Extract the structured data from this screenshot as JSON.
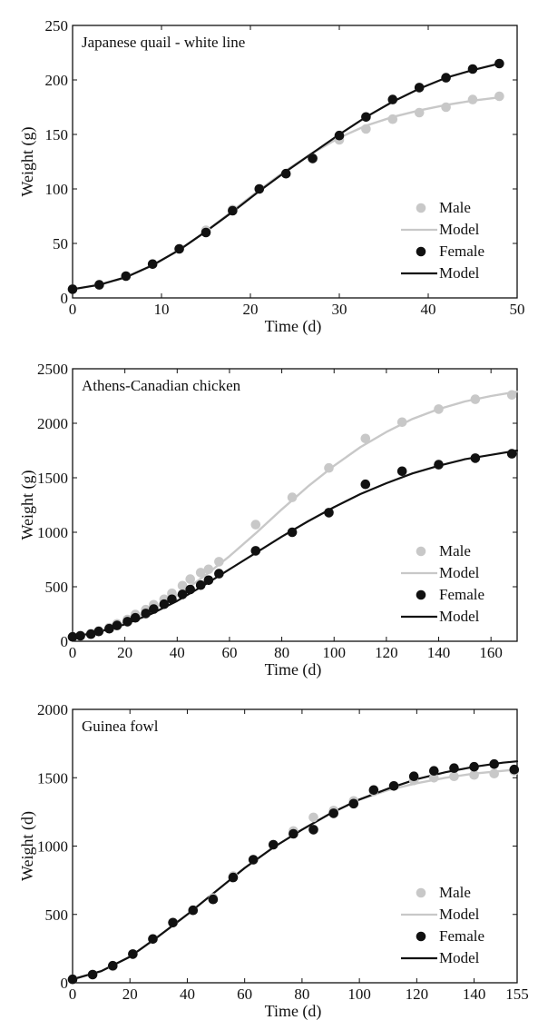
{
  "chart_data": [
    {
      "type": "scatter",
      "title": "Japanese quail - white line",
      "xlabel": "Time (d)",
      "ylabel": "Weight (g)",
      "xlim": [
        0,
        50
      ],
      "ylim": [
        0,
        250
      ],
      "xticks": [
        0,
        10,
        20,
        30,
        40,
        50
      ],
      "yticks": [
        0,
        50,
        100,
        150,
        200,
        250
      ],
      "legend_position": "bottom-right",
      "legend": [
        "Male",
        "Model",
        "Female",
        "Model"
      ],
      "colors": {
        "male": "#c8c8c8",
        "female": "#111111"
      },
      "series": [
        {
          "name": "Male",
          "kind": "points",
          "color": "#c8c8c8",
          "x": [
            0,
            3,
            6,
            9,
            12,
            15,
            18,
            21,
            24,
            27,
            30,
            33,
            36,
            39,
            42,
            45,
            48
          ],
          "y": [
            8,
            12,
            20,
            31,
            45,
            62,
            81,
            100,
            114,
            128,
            145,
            155,
            164,
            170,
            175,
            182,
            185
          ]
        },
        {
          "name": "Model",
          "kind": "line",
          "color": "#c8c8c8",
          "x": [
            0,
            3,
            6,
            9,
            12,
            15,
            18,
            21,
            24,
            27,
            30,
            33,
            36,
            39,
            42,
            45,
            48
          ],
          "y": [
            8,
            12,
            19,
            30,
            44,
            61,
            80,
            99,
            117,
            133,
            147,
            158,
            166,
            172,
            177,
            181,
            184
          ]
        },
        {
          "name": "Female",
          "kind": "points",
          "color": "#111111",
          "x": [
            0,
            3,
            6,
            9,
            12,
            15,
            18,
            21,
            24,
            27,
            30,
            33,
            36,
            39,
            42,
            45,
            48
          ],
          "y": [
            8,
            12,
            20,
            31,
            45,
            60,
            80,
            100,
            114,
            128,
            149,
            166,
            182,
            193,
            202,
            210,
            215
          ]
        },
        {
          "name": "Model",
          "kind": "line",
          "color": "#111111",
          "x": [
            0,
            3,
            6,
            9,
            12,
            15,
            18,
            21,
            24,
            27,
            30,
            33,
            36,
            39,
            42,
            45,
            48
          ],
          "y": [
            8,
            12,
            19,
            30,
            44,
            61,
            79,
            98,
            116,
            133,
            150,
            166,
            180,
            192,
            202,
            209,
            215
          ]
        }
      ]
    },
    {
      "type": "scatter",
      "title": "Athens-Canadian chicken",
      "xlabel": "Time (d)",
      "ylabel": "Weight (g)",
      "xlim": [
        0,
        170
      ],
      "ylim": [
        0,
        2500
      ],
      "xticks": [
        0,
        20,
        40,
        60,
        80,
        100,
        120,
        140,
        160
      ],
      "yticks": [
        0,
        500,
        1000,
        1500,
        2000,
        2500
      ],
      "legend_position": "bottom-right",
      "legend": [
        "Male",
        "Model",
        "Female",
        "Model"
      ],
      "colors": {
        "male": "#c8c8c8",
        "female": "#111111"
      },
      "series": [
        {
          "name": "Male",
          "kind": "points",
          "color": "#c8c8c8",
          "x": [
            0,
            3,
            7,
            10,
            14,
            17,
            21,
            24,
            28,
            31,
            35,
            38,
            42,
            45,
            49,
            52,
            56,
            70,
            84,
            98,
            112,
            126,
            140,
            154,
            168
          ],
          "y": [
            40,
            52,
            70,
            95,
            125,
            160,
            200,
            245,
            290,
            335,
            385,
            440,
            510,
            570,
            630,
            660,
            730,
            1070,
            1320,
            1590,
            1860,
            2010,
            2130,
            2220,
            2260
          ]
        },
        {
          "name": "Model",
          "kind": "line",
          "color": "#c8c8c8",
          "x": [
            0,
            10,
            20,
            30,
            40,
            50,
            60,
            70,
            80,
            90,
            100,
            110,
            120,
            130,
            140,
            150,
            160,
            170
          ],
          "y": [
            40,
            90,
            170,
            280,
            420,
            590,
            780,
            990,
            1210,
            1420,
            1610,
            1780,
            1920,
            2040,
            2130,
            2200,
            2250,
            2290
          ]
        },
        {
          "name": "Female",
          "kind": "points",
          "color": "#111111",
          "x": [
            0,
            3,
            7,
            10,
            14,
            17,
            21,
            24,
            28,
            31,
            35,
            38,
            42,
            45,
            49,
            52,
            56,
            70,
            84,
            98,
            112,
            126,
            140,
            154,
            168
          ],
          "y": [
            40,
            50,
            65,
            90,
            115,
            145,
            180,
            215,
            255,
            295,
            340,
            385,
            430,
            475,
            515,
            560,
            620,
            830,
            1000,
            1180,
            1440,
            1560,
            1620,
            1680,
            1720
          ]
        },
        {
          "name": "Model",
          "kind": "line",
          "color": "#111111",
          "x": [
            0,
            10,
            20,
            30,
            40,
            50,
            60,
            70,
            80,
            90,
            100,
            110,
            120,
            130,
            140,
            150,
            160,
            170
          ],
          "y": [
            40,
            85,
            155,
            250,
            370,
            510,
            660,
            810,
            960,
            1100,
            1230,
            1350,
            1450,
            1540,
            1610,
            1670,
            1710,
            1750
          ]
        }
      ]
    },
    {
      "type": "scatter",
      "title": "Guinea fowl",
      "xlabel": "Time (d)",
      "ylabel": "Weight (d)",
      "xlim": [
        0,
        155
      ],
      "ylim": [
        0,
        2000
      ],
      "xticks": [
        0,
        20,
        40,
        60,
        80,
        100,
        120,
        140,
        155
      ],
      "yticks": [
        0,
        500,
        1000,
        1500,
        2000
      ],
      "legend_position": "bottom-right",
      "legend": [
        "Male",
        "Model",
        "Female",
        "Model"
      ],
      "colors": {
        "male": "#c8c8c8",
        "female": "#111111"
      },
      "series": [
        {
          "name": "Male",
          "kind": "points",
          "color": "#c8c8c8",
          "x": [
            0,
            7,
            14,
            21,
            28,
            35,
            42,
            49,
            56,
            63,
            70,
            77,
            84,
            91,
            98,
            105,
            112,
            119,
            126,
            133,
            140,
            147,
            154
          ],
          "y": [
            25,
            60,
            120,
            210,
            320,
            440,
            530,
            620,
            780,
            900,
            1010,
            1110,
            1210,
            1260,
            1330,
            1400,
            1440,
            1480,
            1500,
            1510,
            1520,
            1530,
            1550
          ]
        },
        {
          "name": "Model",
          "kind": "line",
          "color": "#c8c8c8",
          "x": [
            0,
            10,
            20,
            30,
            40,
            50,
            60,
            70,
            80,
            90,
            100,
            110,
            120,
            130,
            140,
            150,
            155
          ],
          "y": [
            25,
            85,
            190,
            340,
            500,
            670,
            840,
            990,
            1120,
            1240,
            1340,
            1410,
            1460,
            1500,
            1530,
            1550,
            1560
          ]
        },
        {
          "name": "Female",
          "kind": "points",
          "color": "#111111",
          "x": [
            0,
            7,
            14,
            21,
            28,
            35,
            42,
            49,
            56,
            63,
            70,
            77,
            84,
            91,
            98,
            105,
            112,
            119,
            126,
            133,
            140,
            147,
            154
          ],
          "y": [
            25,
            60,
            125,
            210,
            320,
            440,
            530,
            610,
            770,
            900,
            1010,
            1090,
            1120,
            1240,
            1310,
            1410,
            1440,
            1510,
            1550,
            1570,
            1580,
            1600,
            1560
          ]
        },
        {
          "name": "Model",
          "kind": "line",
          "color": "#111111",
          "x": [
            0,
            10,
            20,
            30,
            40,
            50,
            60,
            70,
            80,
            90,
            100,
            110,
            120,
            130,
            140,
            150,
            155
          ],
          "y": [
            25,
            85,
            190,
            340,
            500,
            670,
            840,
            990,
            1120,
            1240,
            1340,
            1420,
            1490,
            1540,
            1580,
            1610,
            1620
          ]
        }
      ]
    }
  ]
}
